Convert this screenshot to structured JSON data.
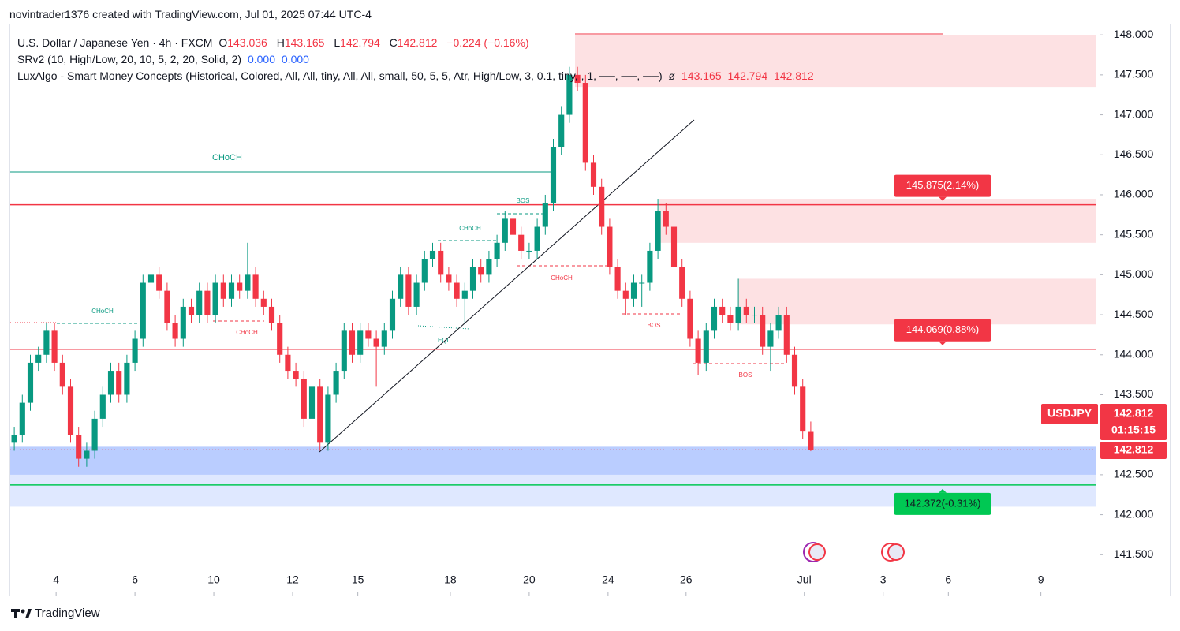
{
  "header": {
    "attribution": "novintrader1376 created with TradingView.com, Jul 01, 2025 07:44 UTC-4"
  },
  "legend": {
    "symbol": "U.S. Dollar / Japanese Yen · 4h · FXCM",
    "ohlc": [
      {
        "key": "O",
        "value": 143.036
      },
      {
        "key": "H",
        "value": 143.165
      },
      {
        "key": "L",
        "value": 142.794
      },
      {
        "key": "C",
        "value": 142.812
      }
    ],
    "change": "−0.224 (−0.16%)",
    "indicators": [
      {
        "name": "SRv2 (10, High/Low, 20, 10, 5, 2, 20, Solid, 2)",
        "values": [
          "0.000",
          "0.000"
        ]
      },
      {
        "name": "LuxAlgo - Smart Money Concepts (Historical, Colored, All, All, tiny, All, All, small, 50, 5, 5, Atr, High/Low, 3, 0.1, tiny, , 1, ──, ──, ──)",
        "symbol": "ø",
        "values": [
          143.165,
          142.794,
          142.812
        ]
      }
    ]
  },
  "footer": {
    "brand": "TradingView"
  },
  "chart_data": {
    "type": "candlestick",
    "up_color": "#089981",
    "down_color": "#f23645",
    "open": [
      142.9,
      143.0,
      143.4,
      143.9,
      144.0,
      144.3,
      143.9,
      143.6,
      143.0,
      142.7,
      142.8,
      143.2,
      143.5,
      143.8,
      143.5,
      143.9,
      144.2,
      144.9,
      145.0,
      144.8,
      144.4,
      144.2,
      144.6,
      144.5,
      144.8,
      144.5,
      144.9,
      144.7,
      144.9,
      144.8,
      145.0,
      144.7,
      144.6,
      144.4,
      144.0,
      143.8,
      143.7,
      143.2,
      143.6,
      142.9,
      143.5,
      143.8,
      144.3,
      144.0,
      144.3,
      144.2,
      144.1,
      144.3,
      144.7,
      145.0,
      144.6,
      144.9,
      145.2,
      145.3,
      145.0,
      144.9,
      144.7,
      144.8,
      145.1,
      145.0,
      145.2,
      145.4,
      145.7,
      145.5,
      145.3,
      145.3,
      145.6,
      145.9,
      146.6,
      147.0,
      147.5,
      147.4,
      146.4,
      146.1,
      145.6,
      145.1,
      144.8,
      144.7,
      144.9,
      144.9,
      145.3,
      145.8,
      145.6,
      145.1,
      144.7,
      144.2,
      143.9,
      144.3,
      144.6,
      144.5,
      144.4,
      144.6,
      144.5,
      144.5,
      144.1,
      144.3,
      144.5,
      144.0,
      143.6,
      143.036
    ],
    "high": [
      143.1,
      143.5,
      144.0,
      144.1,
      144.4,
      144.4,
      144.0,
      143.7,
      143.1,
      142.9,
      143.3,
      143.6,
      143.9,
      143.9,
      144.0,
      144.3,
      145.0,
      145.1,
      145.1,
      144.9,
      144.5,
      144.7,
      144.7,
      144.9,
      144.9,
      145.0,
      145.0,
      145.0,
      145.0,
      145.4,
      145.1,
      144.8,
      144.7,
      144.5,
      144.1,
      143.9,
      143.8,
      143.7,
      143.7,
      143.6,
      143.9,
      144.4,
      144.4,
      144.4,
      144.4,
      144.3,
      144.4,
      144.8,
      145.1,
      145.1,
      145.0,
      145.3,
      145.4,
      145.4,
      145.1,
      145.0,
      144.9,
      145.2,
      145.2,
      145.3,
      145.5,
      145.8,
      145.8,
      145.6,
      145.4,
      145.7,
      146.0,
      146.7,
      147.1,
      147.6,
      147.6,
      147.5,
      146.5,
      146.2,
      145.7,
      145.2,
      144.9,
      145.0,
      145.0,
      145.4,
      145.95,
      145.9,
      145.7,
      145.2,
      144.8,
      144.3,
      144.4,
      144.7,
      144.7,
      144.6,
      144.95,
      144.7,
      144.6,
      144.6,
      144.4,
      144.6,
      144.6,
      144.1,
      143.7,
      143.165
    ],
    "low": [
      142.8,
      142.9,
      143.3,
      143.8,
      143.9,
      143.8,
      143.5,
      142.9,
      142.6,
      142.6,
      142.7,
      143.1,
      143.4,
      143.4,
      143.4,
      143.8,
      144.1,
      144.8,
      144.7,
      144.3,
      144.1,
      144.1,
      144.4,
      144.4,
      144.4,
      144.4,
      144.6,
      144.6,
      144.7,
      144.7,
      144.6,
      144.5,
      144.3,
      143.9,
      143.7,
      143.6,
      143.1,
      143.1,
      142.8,
      142.8,
      143.4,
      143.7,
      143.9,
      143.9,
      144.1,
      143.6,
      144.0,
      144.2,
      144.6,
      144.5,
      144.5,
      144.8,
      145.1,
      144.9,
      144.8,
      144.6,
      144.4,
      144.7,
      144.9,
      144.9,
      145.1,
      145.3,
      145.4,
      145.2,
      145.2,
      145.2,
      145.5,
      145.8,
      146.5,
      146.9,
      147.3,
      146.3,
      146.0,
      145.5,
      145.0,
      144.7,
      144.5,
      144.6,
      144.6,
      144.8,
      145.2,
      145.5,
      145.0,
      144.6,
      144.1,
      143.75,
      143.8,
      144.2,
      144.4,
      144.3,
      144.3,
      144.4,
      144.4,
      144.0,
      143.8,
      144.2,
      143.9,
      143.5,
      142.95,
      142.794
    ],
    "close": [
      143.0,
      143.4,
      143.9,
      144.0,
      144.3,
      143.9,
      143.6,
      143.0,
      142.7,
      142.8,
      143.2,
      143.5,
      143.8,
      143.5,
      143.9,
      144.2,
      144.9,
      145.0,
      144.8,
      144.4,
      144.2,
      144.6,
      144.5,
      144.8,
      144.5,
      144.9,
      144.7,
      144.9,
      144.8,
      145.0,
      144.7,
      144.6,
      144.4,
      144.0,
      143.8,
      143.7,
      143.2,
      143.6,
      142.9,
      143.5,
      143.8,
      144.3,
      144.0,
      144.3,
      144.2,
      144.1,
      144.3,
      144.7,
      145.0,
      144.6,
      144.9,
      145.2,
      145.3,
      145.0,
      144.9,
      144.7,
      144.8,
      145.1,
      145.0,
      145.2,
      145.4,
      145.7,
      145.5,
      145.3,
      145.3,
      145.6,
      145.9,
      146.6,
      147.0,
      147.5,
      147.4,
      146.4,
      146.1,
      145.6,
      145.1,
      144.8,
      144.7,
      144.9,
      144.9,
      145.3,
      145.8,
      145.6,
      145.1,
      144.7,
      144.2,
      143.9,
      144.3,
      144.6,
      144.5,
      144.4,
      144.6,
      144.5,
      144.5,
      144.1,
      144.3,
      144.5,
      144.0,
      143.6,
      143.04,
      142.812
    ],
    "xlim": [
      -0.5,
      134.5
    ],
    "xticks": [
      {
        "value": 5.2,
        "label": "4"
      },
      {
        "value": 15.0,
        "label": "6"
      },
      {
        "value": 24.8,
        "label": "10"
      },
      {
        "value": 34.6,
        "label": "12"
      },
      {
        "value": 42.7,
        "label": "15"
      },
      {
        "value": 54.2,
        "label": "18"
      },
      {
        "value": 64.0,
        "label": "20"
      },
      {
        "value": 73.8,
        "label": "24"
      },
      {
        "value": 83.5,
        "label": "26"
      },
      {
        "value": 98.2,
        "label": "Jul"
      },
      {
        "value": 108.0,
        "label": "3"
      },
      {
        "value": 116.1,
        "label": "6"
      },
      {
        "value": 127.6,
        "label": "9"
      }
    ],
    "ylim": [
      140.99,
      148.12
    ],
    "yticks": [
      {
        "value": 141.5,
        "label": "141.500"
      },
      {
        "value": 142,
        "label": "142.000"
      },
      {
        "value": 142.5,
        "label": "142.500"
      },
      {
        "value": 143,
        "label": "143.000"
      },
      {
        "value": 143.5,
        "label": "143.500"
      },
      {
        "value": 144,
        "label": "144.000"
      },
      {
        "value": 144.5,
        "label": "144.500"
      },
      {
        "value": 145,
        "label": "145.000"
      },
      {
        "value": 145.5,
        "label": "145.500"
      },
      {
        "value": 146,
        "label": "146.000"
      },
      {
        "value": 146.5,
        "label": "146.500"
      },
      {
        "value": 147,
        "label": "147.000"
      },
      {
        "value": 147.5,
        "label": "147.500"
      },
      {
        "value": 148,
        "label": "148.000"
      }
    ],
    "zones": [
      {
        "from": 147.35,
        "to": 148.0,
        "x0": 69.7,
        "color": "rgba(242,54,69,0.15)"
      },
      {
        "from": 145.4,
        "to": 145.95,
        "x0": 80.2,
        "color": "rgba(242,54,69,0.15)"
      },
      {
        "from": 144.38,
        "to": 144.95,
        "x0": 90.0,
        "color": "rgba(242,54,69,0.15)"
      },
      {
        "from": 142.1,
        "to": 142.85,
        "x0": -0.5,
        "color": "rgba(41,98,255,0.15)"
      },
      {
        "from": 142.5,
        "to": 142.85,
        "x0": -0.5,
        "color": "rgba(41,98,255,0.2)"
      }
    ],
    "levels": [
      {
        "value": 145.875,
        "label": "145.875(2.14%)",
        "color": "#f23645"
      },
      {
        "value": 144.069,
        "label": "144.069(0.88%)",
        "color": "#f23645"
      },
      {
        "value": 142.372,
        "label": "142.372(-0.31%)",
        "color": "#00c853"
      }
    ],
    "annotations": [
      "CHoCH",
      "BOS",
      "CHoCH",
      "CHoCH",
      "CHoCH",
      "EQL",
      "CHoCH",
      "BOS",
      "BOS"
    ],
    "last_price": {
      "symbol": "USDJPY",
      "price": 142.812,
      "countdown": "01:15:15",
      "price2": 142.812
    }
  }
}
